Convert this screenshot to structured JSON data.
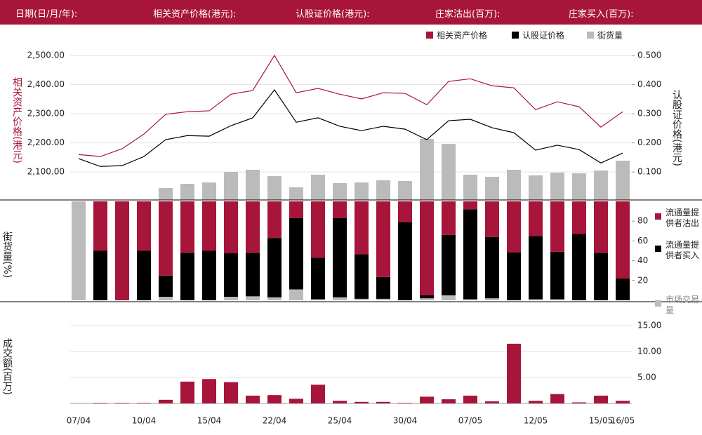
{
  "header": {
    "labels": [
      "日期(日/月/年):",
      "相关资产价格(港元):",
      "认股证价格(港元):",
      "庄家沽出(百万):",
      "庄家买入(百万):"
    ]
  },
  "chart_data": [
    {
      "type": "line",
      "y_label": "相关资产价格(港元)",
      "y2_label": "认股证价格(港元)",
      "categories": [
        "07/04",
        null,
        null,
        "10/04",
        null,
        null,
        "15/04",
        null,
        null,
        "22/04",
        null,
        null,
        "25/04",
        null,
        null,
        "30/04",
        null,
        null,
        "07/05",
        null,
        null,
        "12/05",
        null,
        null,
        "15/05",
        "16/05"
      ],
      "series": [
        {
          "name": "相关资产价格",
          "color": "#a8153a",
          "values": [
            2160,
            2153,
            2180,
            2230,
            2298,
            2307,
            2310,
            2367,
            2380,
            2500,
            2372,
            2387,
            2367,
            2351,
            2372,
            2370,
            2331,
            2411,
            2420,
            2396,
            2389,
            2314,
            2341,
            2324,
            2254,
            2307
          ]
        },
        {
          "name": "认股证价格",
          "color": "#000000",
          "axis": "y2",
          "values": [
            0.146,
            0.119,
            0.122,
            0.153,
            0.211,
            0.225,
            0.223,
            0.259,
            0.286,
            0.382,
            0.271,
            0.286,
            0.257,
            0.242,
            0.257,
            0.247,
            0.211,
            0.276,
            0.281,
            0.252,
            0.235,
            0.175,
            0.192,
            0.177,
            0.131,
            0.165
          ]
        },
        {
          "name": "街货量",
          "color": "#bbbbbb",
          "type": "bar",
          "axis": "y3",
          "values": [
            0,
            0,
            0,
            0,
            17,
            23,
            25,
            40,
            43,
            34,
            18,
            36,
            24,
            25,
            28,
            27,
            87,
            80,
            36,
            33,
            43,
            35,
            39,
            38,
            42,
            56
          ]
        }
      ],
      "ylim": [
        2004,
        2546
      ],
      "yticks": [
        {
          "value": 2100,
          "label": "2,100.00"
        },
        {
          "value": 2200,
          "label": "2,200.00"
        },
        {
          "value": 2300,
          "label": "2,300.00"
        },
        {
          "value": 2400,
          "label": "2,400.00"
        },
        {
          "value": 2500,
          "label": "2,500.00"
        }
      ],
      "y2lim": [
        0.004,
        0.546
      ],
      "y2ticks": [
        {
          "value": 0.1,
          "label": "0.100"
        },
        {
          "value": 0.2,
          "label": "0.200"
        },
        {
          "value": 0.3,
          "label": "0.300"
        },
        {
          "value": 0.4,
          "label": "0.400"
        },
        {
          "value": 0.5,
          "label": "0.500"
        }
      ],
      "y3lim": [
        0,
        225
      ],
      "grid": true
    },
    {
      "type": "stacked_bar",
      "y_label": "街货量(%)",
      "series": [
        {
          "name": "流通量提供者沽出",
          "color": "#a8153a",
          "values": [
            0,
            50,
            100,
            50,
            75,
            52,
            50,
            52.5,
            52,
            37,
            17,
            57,
            17,
            53.5,
            76.5,
            21,
            95,
            34,
            8,
            36,
            51.5,
            35,
            51,
            33,
            52,
            78
          ]
        },
        {
          "name": "流通量提供者买入",
          "color": "#000000",
          "values": [
            0,
            50,
            0,
            50,
            21.5,
            48,
            50,
            44,
            44,
            60,
            72,
            42,
            80,
            45,
            22,
            79,
            3,
            61,
            91,
            62,
            48.5,
            64,
            48,
            67,
            48,
            22
          ]
        },
        {
          "name": "市场交易量",
          "color": "#bbbbbb",
          "values": [
            100,
            0,
            0,
            0,
            3.5,
            0,
            0,
            3.5,
            4,
            3,
            11,
            1,
            3,
            1.5,
            1.5,
            0,
            2,
            5,
            1,
            2,
            0,
            1,
            1,
            0,
            0,
            0
          ]
        }
      ],
      "ylim": [
        0,
        100
      ],
      "y2ticks": [
        20,
        40,
        60,
        80
      ]
    },
    {
      "type": "bar",
      "y_label": "成交额(百万)",
      "color": "#a8153a",
      "values": [
        0,
        0.1,
        0.1,
        0.1,
        0.7,
        4.2,
        4.7,
        4.1,
        1.5,
        1.6,
        0.9,
        3.6,
        0.5,
        0.3,
        0.3,
        0.1,
        1.3,
        0.8,
        1.5,
        0.4,
        11.5,
        0.5,
        1.8,
        0.2,
        1.5,
        0.5
      ],
      "y2lim": [
        0,
        19.6
      ],
      "y2ticks": [
        {
          "value": 5,
          "label": "5.00"
        },
        {
          "value": 10,
          "label": "10.00"
        },
        {
          "value": 15,
          "label": "15.00"
        }
      ],
      "grid": true
    }
  ]
}
